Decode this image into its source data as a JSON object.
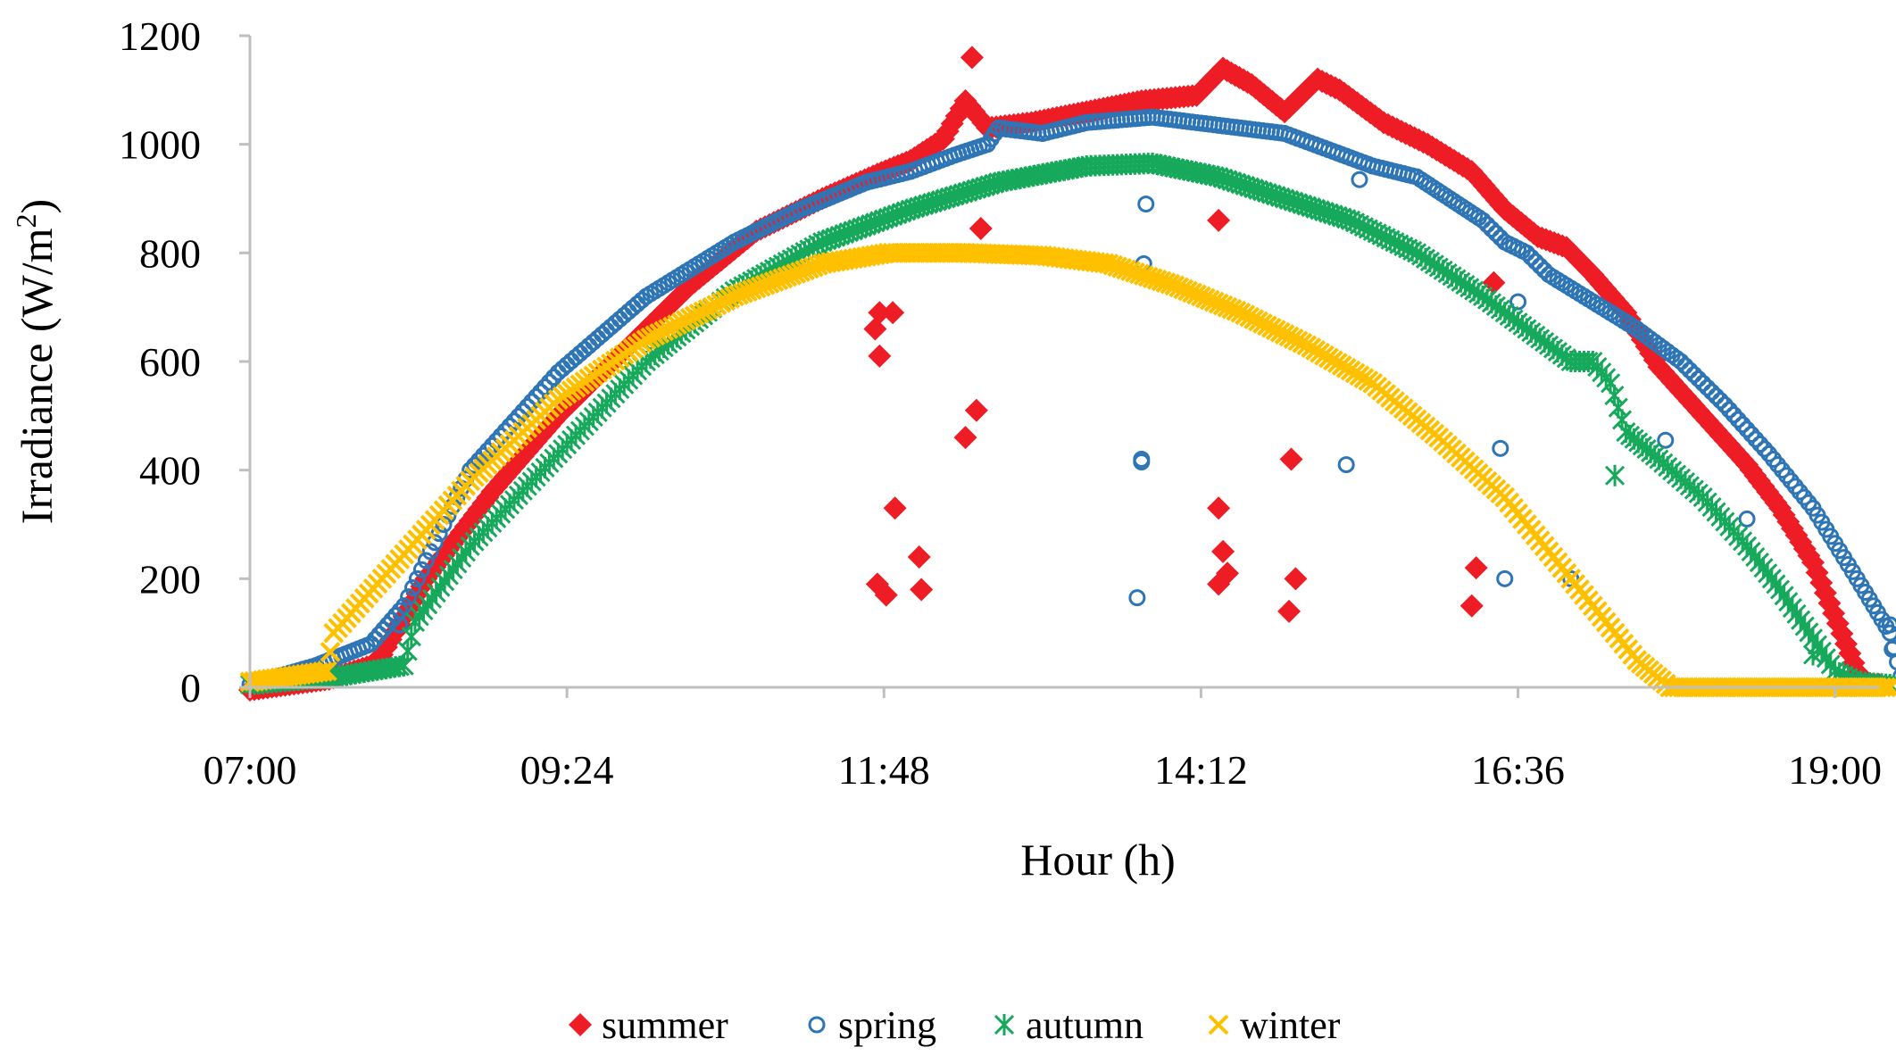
{
  "chart_data": {
    "type": "scatter",
    "title": "",
    "xlabel": "Hour (h)",
    "ylabel": "Irradiance (W/m²)",
    "ylabel_main": "Irradiance (W/m",
    "ylabel_sup": "2",
    "ylabel_close": ")",
    "xlim": [
      420,
      1160
    ],
    "ylim": [
      0,
      1200
    ],
    "x_ticks": [
      {
        "value": 420,
        "label": "07:00"
      },
      {
        "value": 564,
        "label": "09:24"
      },
      {
        "value": 708,
        "label": "11:48"
      },
      {
        "value": 852,
        "label": "14:12"
      },
      {
        "value": 996,
        "label": "16:36"
      },
      {
        "value": 1140,
        "label": "19:00"
      }
    ],
    "y_ticks": [
      {
        "value": 0,
        "label": "0"
      },
      {
        "value": 200,
        "label": "200"
      },
      {
        "value": 400,
        "label": "400"
      },
      {
        "value": 600,
        "label": "600"
      },
      {
        "value": 800,
        "label": "800"
      },
      {
        "value": 1000,
        "label": "1000"
      },
      {
        "value": 1200,
        "label": "1200"
      }
    ],
    "series": [
      {
        "name": "summer",
        "color": "#ee1c25",
        "marker": "diamond",
        "x_units": "minutes after midnight",
        "curve": [
          [
            420,
            -5
          ],
          [
            456,
            15
          ],
          [
            475,
            40
          ],
          [
            480,
            60
          ],
          [
            500,
            200
          ],
          [
            530,
            360
          ],
          [
            560,
            500
          ],
          [
            590,
            620
          ],
          [
            620,
            740
          ],
          [
            650,
            840
          ],
          [
            680,
            900
          ],
          [
            705,
            945
          ],
          [
            720,
            970
          ],
          [
            735,
            1010
          ],
          [
            745,
            1080
          ],
          [
            755,
            1030
          ],
          [
            775,
            1040
          ],
          [
            800,
            1060
          ],
          [
            825,
            1080
          ],
          [
            850,
            1090
          ],
          [
            862,
            1140
          ],
          [
            875,
            1110
          ],
          [
            890,
            1060
          ],
          [
            905,
            1120
          ],
          [
            915,
            1100
          ],
          [
            935,
            1040
          ],
          [
            955,
            1000
          ],
          [
            975,
            950
          ],
          [
            990,
            880
          ],
          [
            1005,
            830
          ],
          [
            1018,
            810
          ],
          [
            1030,
            760
          ],
          [
            1045,
            690
          ],
          [
            1060,
            590
          ],
          [
            1080,
            500
          ],
          [
            1100,
            410
          ],
          [
            1115,
            330
          ],
          [
            1130,
            230
          ],
          [
            1145,
            80
          ],
          [
            1152,
            10
          ],
          [
            1158,
            5
          ]
        ],
        "outliers": [
          [
            704,
            660
          ],
          [
            706,
            690
          ],
          [
            706,
            610
          ],
          [
            712,
            690
          ],
          [
            713,
            330
          ],
          [
            705,
            190
          ],
          [
            709,
            170
          ],
          [
            724,
            240
          ],
          [
            725,
            180
          ],
          [
            745,
            460
          ],
          [
            750,
            510
          ],
          [
            752,
            845
          ],
          [
            748,
            1160
          ],
          [
            860,
            860
          ],
          [
            860,
            330
          ],
          [
            860,
            190
          ],
          [
            862,
            250
          ],
          [
            864,
            210
          ],
          [
            893,
            420
          ],
          [
            895,
            200
          ],
          [
            892,
            140
          ],
          [
            977,
            220
          ],
          [
            975,
            150
          ],
          [
            985,
            745
          ],
          [
            1145,
            10
          ],
          [
            1160,
            5
          ]
        ]
      },
      {
        "name": "spring",
        "color": "#2e75b6",
        "marker": "circle",
        "x_units": "minutes after midnight",
        "curve": [
          [
            420,
            5
          ],
          [
            450,
            40
          ],
          [
            475,
            80
          ],
          [
            490,
            150
          ],
          [
            520,
            400
          ],
          [
            560,
            580
          ],
          [
            600,
            720
          ],
          [
            640,
            820
          ],
          [
            670,
            880
          ],
          [
            700,
            930
          ],
          [
            720,
            950
          ],
          [
            740,
            980
          ],
          [
            755,
            1000
          ],
          [
            760,
            1030
          ],
          [
            780,
            1020
          ],
          [
            800,
            1040
          ],
          [
            830,
            1050
          ],
          [
            850,
            1040
          ],
          [
            870,
            1030
          ],
          [
            890,
            1020
          ],
          [
            910,
            990
          ],
          [
            930,
            960
          ],
          [
            950,
            940
          ],
          [
            965,
            900
          ],
          [
            980,
            860
          ],
          [
            990,
            820
          ],
          [
            1000,
            800
          ],
          [
            1010,
            760
          ],
          [
            1030,
            710
          ],
          [
            1050,
            660
          ],
          [
            1070,
            600
          ],
          [
            1090,
            520
          ],
          [
            1110,
            430
          ],
          [
            1130,
            330
          ],
          [
            1150,
            200
          ],
          [
            1165,
            100
          ],
          [
            1170,
            20
          ]
        ],
        "outliers": [
          [
            488,
            115
          ],
          [
            825,
            420
          ],
          [
            825,
            415
          ],
          [
            823,
            165
          ],
          [
            827,
            890
          ],
          [
            826,
            780
          ],
          [
            918,
            410
          ],
          [
            924,
            935
          ],
          [
            988,
            440
          ],
          [
            990,
            200
          ],
          [
            996,
            710
          ],
          [
            1020,
            200
          ],
          [
            1063,
            455
          ],
          [
            1100,
            310
          ],
          [
            1165,
            115
          ],
          [
            1166,
            70
          ]
        ]
      },
      {
        "name": "autumn",
        "color": "#16a85b",
        "marker": "asterisk",
        "x_units": "minutes after midnight",
        "curve": [
          [
            420,
            5
          ],
          [
            460,
            20
          ],
          [
            490,
            40
          ],
          [
            495,
            120
          ],
          [
            520,
            260
          ],
          [
            560,
            430
          ],
          [
            600,
            600
          ],
          [
            640,
            730
          ],
          [
            680,
            820
          ],
          [
            720,
            880
          ],
          [
            760,
            930
          ],
          [
            800,
            960
          ],
          [
            830,
            965
          ],
          [
            860,
            940
          ],
          [
            890,
            900
          ],
          [
            920,
            860
          ],
          [
            950,
            800
          ],
          [
            980,
            720
          ],
          [
            1000,
            660
          ],
          [
            1010,
            630
          ],
          [
            1020,
            600
          ],
          [
            1030,
            600
          ],
          [
            1038,
            560
          ],
          [
            1045,
            470
          ],
          [
            1060,
            420
          ],
          [
            1080,
            350
          ],
          [
            1100,
            260
          ],
          [
            1115,
            180
          ],
          [
            1130,
            90
          ],
          [
            1140,
            30
          ],
          [
            1150,
            10
          ],
          [
            1165,
            5
          ]
        ],
        "outliers": [
          [
            1040,
            390
          ],
          [
            1130,
            60
          ]
        ]
      },
      {
        "name": "winter",
        "color": "#ffc000",
        "marker": "x",
        "x_units": "minutes after midnight",
        "curve": [
          [
            420,
            10
          ],
          [
            455,
            30
          ],
          [
            458,
            100
          ],
          [
            480,
            200
          ],
          [
            520,
            380
          ],
          [
            560,
            530
          ],
          [
            600,
            640
          ],
          [
            640,
            720
          ],
          [
            680,
            780
          ],
          [
            710,
            800
          ],
          [
            745,
            800
          ],
          [
            780,
            795
          ],
          [
            810,
            780
          ],
          [
            840,
            740
          ],
          [
            870,
            690
          ],
          [
            900,
            630
          ],
          [
            930,
            560
          ],
          [
            960,
            460
          ],
          [
            990,
            350
          ],
          [
            1010,
            250
          ],
          [
            1030,
            150
          ],
          [
            1050,
            50
          ],
          [
            1065,
            0
          ],
          [
            1100,
            0
          ],
          [
            1165,
            0
          ]
        ],
        "outliers": []
      }
    ],
    "legend": [
      {
        "label": "summer",
        "symbol": "♦",
        "color": "#ee1c25"
      },
      {
        "label": "spring",
        "symbol": "o",
        "color": "#2e75b6"
      },
      {
        "label": "autumn",
        "symbol": "✱",
        "color": "#16a85b"
      },
      {
        "label": "winter",
        "symbol": "✕",
        "color": "#ffc000"
      }
    ],
    "legend_position": "bottom-center",
    "grid": false
  }
}
